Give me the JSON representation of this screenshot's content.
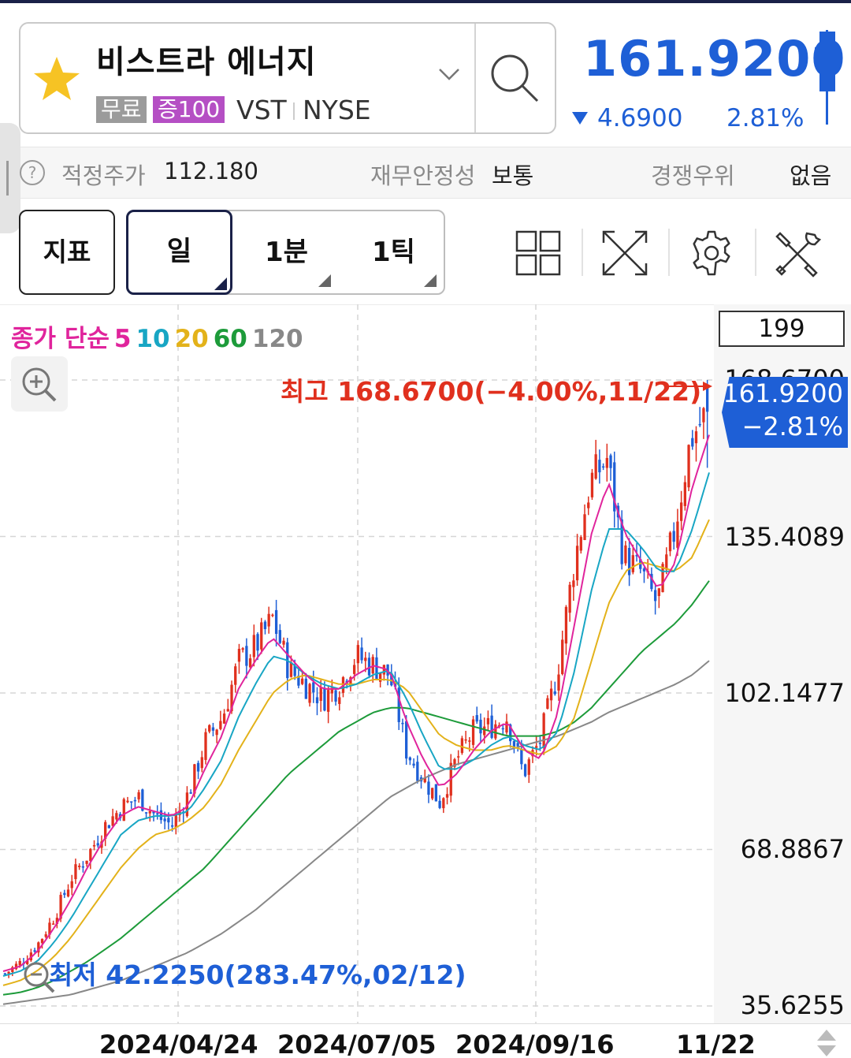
{
  "header": {
    "stock_name": "비스트라 에너지",
    "tag_free": "무료",
    "tag_margin": "증100",
    "ticker": "VST",
    "exchange": "NYSE",
    "price": "161.9200",
    "change_value": "4.6900",
    "change_pct": "2.81%",
    "price_color": "#1e5fd6",
    "favorite_icon": "star-icon"
  },
  "info": {
    "fair_price_label": "적정주가",
    "fair_price_value": "112.180",
    "stability_label": "재무안정성",
    "stability_value": "보통",
    "moat_label": "경쟁우위",
    "moat_value": "없음"
  },
  "toolbar": {
    "indicator_label": "지표",
    "period_day": "일",
    "period_1min": "1분",
    "period_1tick": "1틱",
    "icons": [
      "layout-grid-icon",
      "fullscreen-icon",
      "settings-gear-icon",
      "tools-icon"
    ]
  },
  "chart": {
    "ma_prefix": "종가 단순",
    "ma5": "5",
    "ma10": "10",
    "ma20": "20",
    "ma60": "60",
    "ma120": "120",
    "ma_colors": {
      "5": "#e0249c",
      "10": "#18a6c4",
      "20": "#e3b21a",
      "60": "#1d9b3a",
      "120": "#888888"
    },
    "candle_count": "199",
    "high_annotation": "최고 168.6700(−4.00%,11/22)",
    "low_annotation": "최저 42.2250(283.47%,02/12)",
    "current_price": "161.9200",
    "current_change": "−2.81%",
    "y_top_partial": "168.6700",
    "y_labels": [
      "135.4089",
      "102.1477",
      "68.8867",
      "35.6255"
    ],
    "x_labels": [
      "2024/04/24",
      "2024/07/05",
      "2024/09/16",
      "11/22"
    ]
  },
  "chart_data": {
    "type": "candlestick",
    "ylim": [
      35.6255,
      168.67
    ],
    "y_ticks": [
      35.6255,
      68.8867,
      102.1477,
      135.4089,
      168.67
    ],
    "x_ticks": [
      "2024/04/24",
      "2024/07/05",
      "2024/09/16",
      "11/22"
    ],
    "high": {
      "value": 168.67,
      "date": "11/22"
    },
    "low": {
      "value": 42.225,
      "date": "02/12"
    },
    "last": 161.92,
    "close_path": [
      42.5,
      45,
      49,
      55,
      63,
      68,
      74,
      78,
      80,
      76,
      74,
      81,
      92,
      97,
      109,
      112,
      118,
      107,
      104,
      101,
      104,
      110,
      108,
      106,
      90,
      84,
      79,
      88,
      94,
      95,
      97,
      85,
      92,
      106,
      129,
      147,
      152,
      131,
      128,
      121,
      136,
      156,
      162
    ],
    "ma": {
      "5": [
        43,
        44,
        47,
        52,
        58,
        65,
        71,
        76,
        78,
        77,
        76,
        78,
        86,
        93,
        103,
        109,
        114,
        110,
        106,
        103,
        103,
        106,
        108,
        107,
        96,
        88,
        82,
        85,
        90,
        94,
        96,
        90,
        88,
        98,
        117,
        136,
        147,
        136,
        130,
        124,
        130,
        146,
        157
      ],
      "10": [
        42,
        43,
        45,
        49,
        54,
        60,
        66,
        72,
        75,
        76,
        76,
        77,
        82,
        88,
        97,
        104,
        110,
        109,
        106,
        104,
        103,
        104,
        106,
        107,
        101,
        93,
        86,
        86,
        88,
        91,
        93,
        91,
        90,
        94,
        107,
        124,
        137,
        137,
        133,
        128,
        128,
        137,
        149
      ],
      "20": [
        40,
        41,
        43,
        46,
        50,
        55,
        60,
        65,
        69,
        72,
        73,
        75,
        78,
        83,
        90,
        96,
        102,
        105,
        106,
        105,
        104,
        104,
        105,
        105,
        103,
        98,
        93,
        91,
        90,
        90,
        91,
        90,
        89,
        91,
        97,
        109,
        121,
        128,
        130,
        129,
        128,
        131,
        139
      ],
      "60": [
        38,
        38.5,
        39.5,
        41,
        43,
        45,
        47.5,
        50,
        53,
        56,
        59,
        62,
        65,
        69,
        73,
        77,
        81,
        85,
        88,
        91,
        94,
        96,
        98,
        99,
        99,
        98,
        97,
        96,
        95,
        94,
        93,
        93,
        93,
        94,
        96,
        99,
        103,
        107,
        111,
        114,
        117,
        121,
        126
      ],
      "120": [
        36,
        36.5,
        37,
        37.5,
        38,
        39,
        40,
        41,
        42.5,
        44,
        45.5,
        47,
        49,
        51,
        53.5,
        56,
        59,
        62,
        65,
        68,
        71,
        74,
        77,
        80,
        82,
        84,
        85.5,
        87,
        88,
        89,
        90,
        91,
        92,
        93,
        94.5,
        96,
        98,
        99.5,
        101,
        102.5,
        104,
        106,
        109
      ]
    }
  }
}
